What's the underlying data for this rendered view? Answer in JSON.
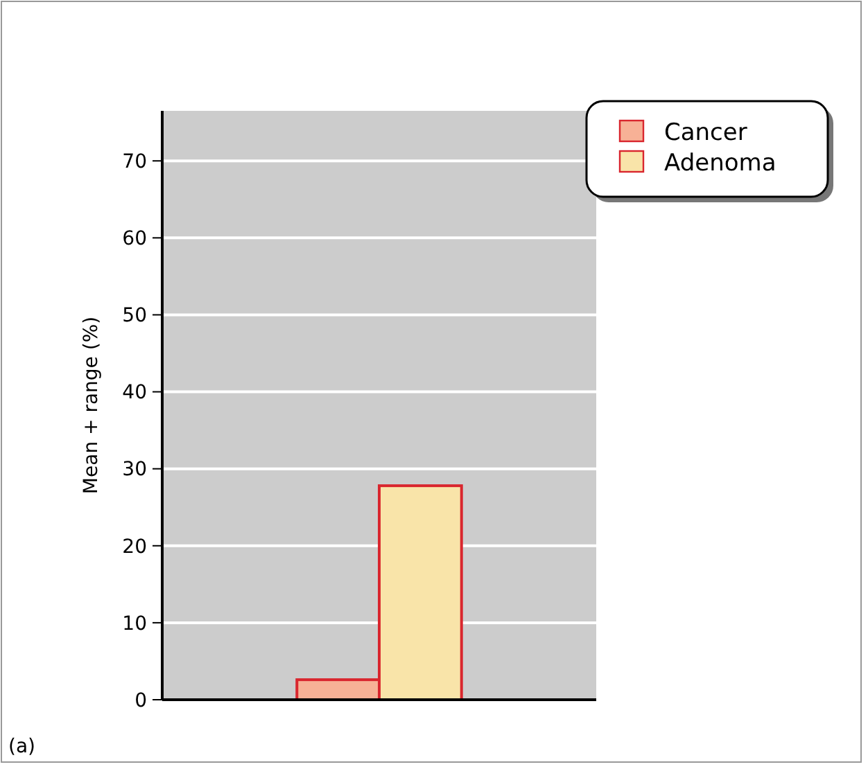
{
  "chart_data": {
    "type": "bar",
    "ylabel": "Mean + range (%)",
    "categories": [
      null
    ],
    "series": [
      {
        "name": "Cancer",
        "color": "#f7b196",
        "values": [
          2.6
        ]
      },
      {
        "name": "Adenoma",
        "color": "#f9e4a9",
        "values": [
          27.8
        ]
      }
    ],
    "ylim": [
      0,
      76.5
    ],
    "yticks": [
      0,
      10,
      20,
      30,
      40,
      50,
      60,
      70
    ],
    "grid": "y",
    "legend": "top right",
    "annotations": [
      "(a)"
    ]
  }
}
